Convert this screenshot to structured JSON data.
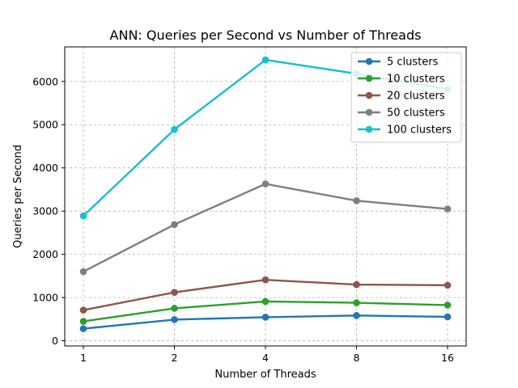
{
  "chart_data": {
    "type": "line",
    "title": "ANN: Queries per Second vs Number of Threads",
    "xlabel": "Number of Threads",
    "ylabel": "Queries per Second",
    "x_scale": "log2",
    "categories": [
      "1",
      "2",
      "4",
      "8",
      "16"
    ],
    "x": [
      1,
      2,
      4,
      8,
      16
    ],
    "ylim": [
      -120,
      6800
    ],
    "yticks": [
      0,
      1000,
      2000,
      3000,
      4000,
      5000,
      6000
    ],
    "ytick_labels": [
      "0",
      "1000",
      "2000",
      "3000",
      "4000",
      "5000",
      "6000"
    ],
    "grid": true,
    "legend_position": "top-right",
    "series": [
      {
        "name": "5 clusters",
        "color": "#1f77b4",
        "values": [
          280,
          490,
          545,
          585,
          555
        ]
      },
      {
        "name": "10 clusters",
        "color": "#2ca02c",
        "values": [
          450,
          750,
          910,
          880,
          825
        ]
      },
      {
        "name": "20 clusters",
        "color": "#8c564b",
        "values": [
          710,
          1120,
          1410,
          1300,
          1285
        ]
      },
      {
        "name": "50 clusters",
        "color": "#7f7f7f",
        "values": [
          1600,
          2690,
          3630,
          3240,
          3050
        ]
      },
      {
        "name": "100 clusters",
        "color": "#17becf",
        "values": [
          2890,
          4890,
          6500,
          6180,
          5820
        ]
      }
    ]
  }
}
